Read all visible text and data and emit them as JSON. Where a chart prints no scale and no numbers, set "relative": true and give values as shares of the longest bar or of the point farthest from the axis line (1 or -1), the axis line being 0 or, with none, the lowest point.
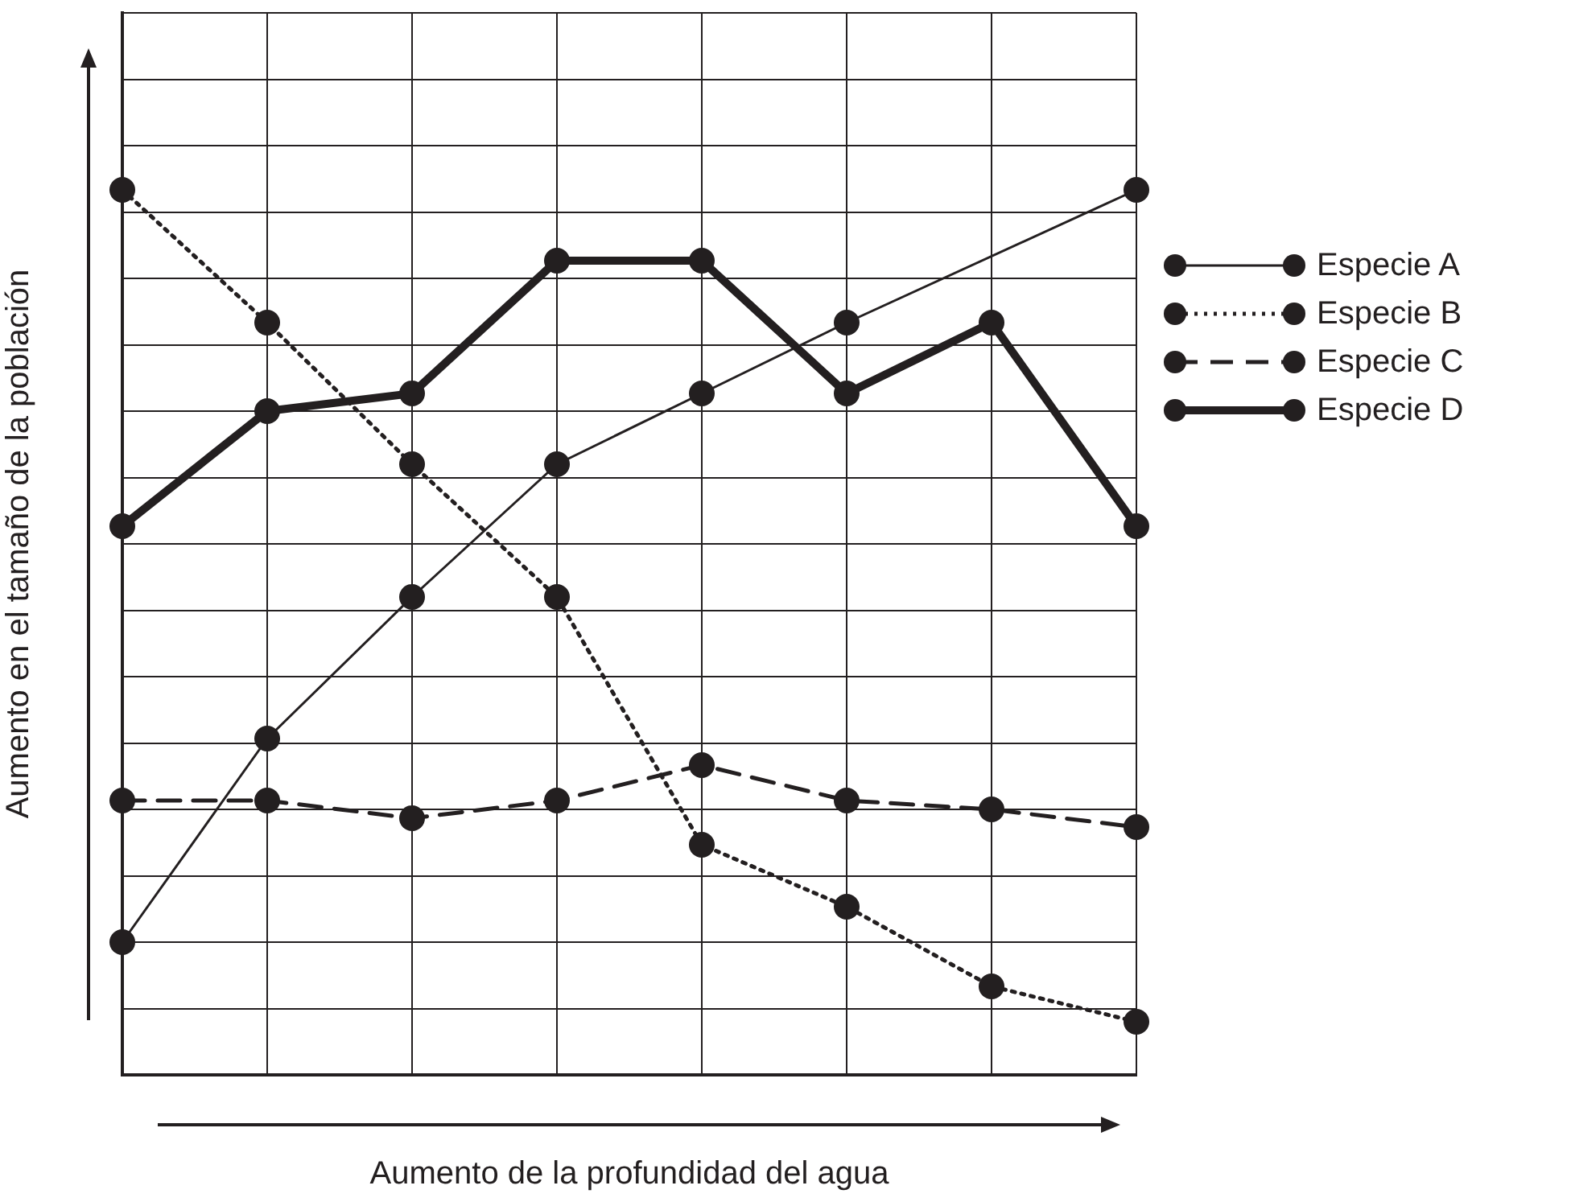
{
  "chart_data": {
    "type": "line",
    "relative": true,
    "xlabel": "Aumento de la profundidad del agua",
    "ylabel": "Aumento en el tamaño de la población",
    "categories": [
      null,
      null,
      null,
      null,
      null,
      null,
      null,
      null
    ],
    "grid": true,
    "legend": "right",
    "marker": "circle",
    "series": [
      {
        "name": "Especie A",
        "color": "#231f20",
        "line_style": "solid",
        "values": [
          0.15,
          0.38,
          0.54,
          0.69,
          0.77,
          0.85,
          null,
          1
        ]
      },
      {
        "name": "Especie B",
        "color": "#231f20",
        "line_style": "dotted",
        "values": [
          1,
          0.85,
          0.69,
          0.54,
          0.26,
          0.19,
          0.1,
          0.06
        ]
      },
      {
        "name": "Especie C",
        "color": "#231f20",
        "line_style": "dashed",
        "values": [
          0.31,
          0.31,
          0.29,
          0.31,
          0.35,
          0.31,
          0.3,
          0.28
        ]
      },
      {
        "name": "Especie D",
        "color": "#231f20",
        "line_style": "solid",
        "values": [
          0.62,
          0.75,
          0.77,
          0.92,
          0.92,
          0.77,
          0.85,
          0.62
        ]
      }
    ]
  }
}
